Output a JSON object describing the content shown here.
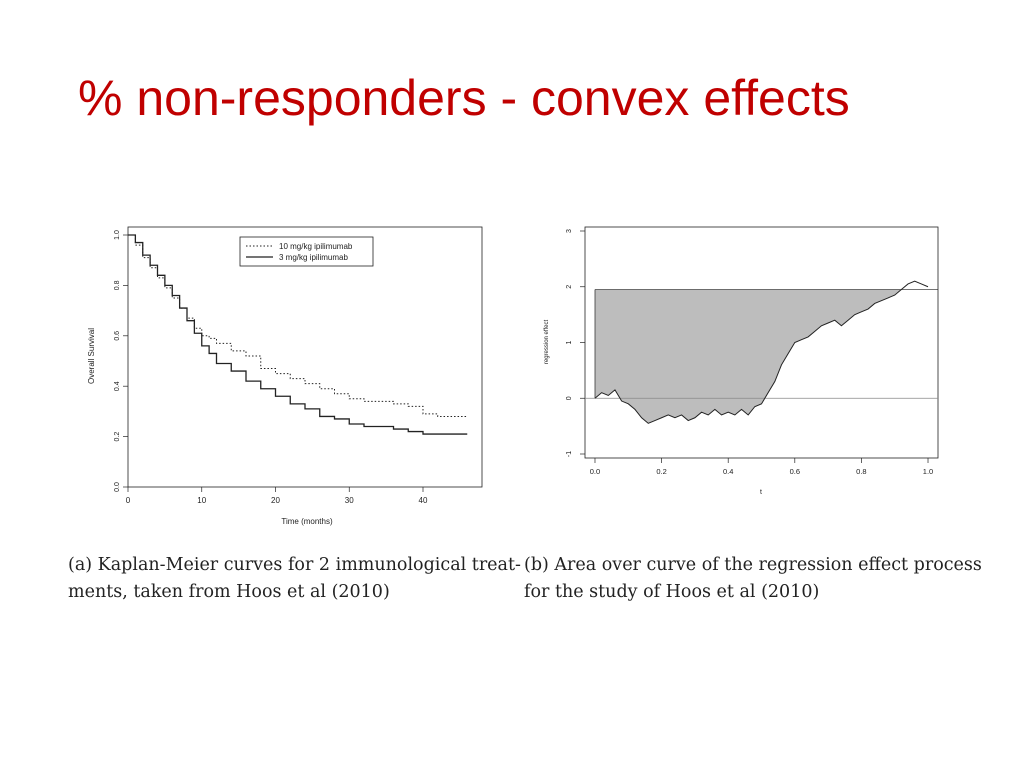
{
  "slide": {
    "title": "% non-responders - convex effects"
  },
  "captions": {
    "a": {
      "line1": "(a) Kaplan-Meier curves for 2 immunological treat-",
      "line2": "ments, taken from Hoos et al (2010)"
    },
    "b": {
      "line1": "(b) Area over curve of the regression effect process",
      "line2": "for the study of Hoos et al (2010)"
    }
  },
  "colors": {
    "title": "#c00000",
    "area_fill": "#bdbdbd",
    "ink": "#222222"
  },
  "chart_data": [
    {
      "type": "line",
      "xlabel": "Time (months)",
      "ylabel": "Overall Survival",
      "xlim": [
        0,
        48
      ],
      "ylim": [
        0,
        1.0
      ],
      "x_ticks": [
        "0",
        "10",
        "20",
        "30",
        "40"
      ],
      "y_ticks": [
        "0.0",
        "0.2",
        "0.4",
        "0.6",
        "0.8",
        "1.0"
      ],
      "legend_position": "top-right",
      "series": [
        {
          "name": "10 mg/kg ipilimumab",
          "style": "dotted",
          "x": [
            0,
            1,
            2,
            3,
            4,
            5,
            6,
            7,
            8,
            9,
            10,
            11,
            12,
            14,
            16,
            18,
            20,
            22,
            24,
            26,
            28,
            30,
            32,
            34,
            36,
            38,
            40,
            42,
            44,
            46
          ],
          "y": [
            1.0,
            0.96,
            0.91,
            0.87,
            0.83,
            0.79,
            0.75,
            0.71,
            0.67,
            0.63,
            0.6,
            0.59,
            0.57,
            0.54,
            0.52,
            0.47,
            0.45,
            0.43,
            0.41,
            0.39,
            0.37,
            0.35,
            0.34,
            0.34,
            0.33,
            0.32,
            0.29,
            0.28,
            0.28,
            0.28
          ]
        },
        {
          "name": "3 mg/kg ipilimumab",
          "style": "solid",
          "x": [
            0,
            1,
            2,
            3,
            4,
            5,
            6,
            7,
            8,
            9,
            10,
            11,
            12,
            14,
            16,
            18,
            20,
            22,
            24,
            26,
            28,
            30,
            32,
            34,
            36,
            38,
            40,
            42,
            44,
            46
          ],
          "y": [
            1.0,
            0.97,
            0.92,
            0.88,
            0.84,
            0.8,
            0.76,
            0.71,
            0.66,
            0.61,
            0.56,
            0.53,
            0.49,
            0.46,
            0.42,
            0.39,
            0.36,
            0.33,
            0.31,
            0.28,
            0.27,
            0.25,
            0.24,
            0.24,
            0.23,
            0.22,
            0.21,
            0.21,
            0.21,
            0.21
          ]
        }
      ]
    },
    {
      "type": "area",
      "xlabel": "t",
      "ylabel": "regression effect",
      "xlim": [
        -0.03,
        1.03
      ],
      "ylim": [
        -1,
        3
      ],
      "x_ticks": [
        "0.0",
        "0.2",
        "0.4",
        "0.6",
        "0.8",
        "1.0"
      ],
      "y_ticks": [
        "-1",
        "0",
        "1",
        "2",
        "3"
      ],
      "reference_lines": [
        0,
        1.95
      ],
      "series": [
        {
          "x": [
            0,
            0.02,
            0.04,
            0.06,
            0.08,
            0.1,
            0.12,
            0.14,
            0.16,
            0.18,
            0.2,
            0.22,
            0.24,
            0.26,
            0.28,
            0.3,
            0.32,
            0.34,
            0.36,
            0.38,
            0.4,
            0.42,
            0.44,
            0.46,
            0.48,
            0.5,
            0.52,
            0.54,
            0.56,
            0.58,
            0.6,
            0.62,
            0.64,
            0.66,
            0.68,
            0.7,
            0.72,
            0.74,
            0.76,
            0.78,
            0.8,
            0.82,
            0.84,
            0.86,
            0.88,
            0.9,
            0.92,
            0.94,
            0.96,
            0.98,
            1.0
          ],
          "y": [
            0.0,
            0.1,
            0.05,
            0.15,
            -0.05,
            -0.1,
            -0.2,
            -0.35,
            -0.45,
            -0.4,
            -0.35,
            -0.3,
            -0.35,
            -0.3,
            -0.4,
            -0.35,
            -0.25,
            -0.3,
            -0.2,
            -0.3,
            -0.25,
            -0.3,
            -0.2,
            -0.3,
            -0.15,
            -0.1,
            0.1,
            0.3,
            0.6,
            0.8,
            1.0,
            1.05,
            1.1,
            1.2,
            1.3,
            1.35,
            1.4,
            1.3,
            1.4,
            1.5,
            1.55,
            1.6,
            1.7,
            1.75,
            1.8,
            1.85,
            1.95,
            2.05,
            2.1,
            2.05,
            2.0
          ]
        }
      ]
    }
  ]
}
